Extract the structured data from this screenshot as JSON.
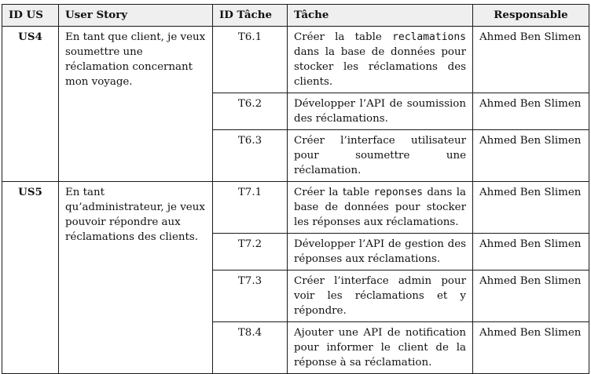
{
  "headers": {
    "id_us": "ID US",
    "user_story": "User Story",
    "id_tache": "ID Tâche",
    "tache": "Tâche",
    "responsable": "Responsable"
  },
  "stories": [
    {
      "id": "US4",
      "story": "En tant que client, je veux soumettre une réclamation concernant mon voyage.",
      "tasks": [
        {
          "id": "T6.1",
          "text_before": "Créer la table ",
          "code": "reclamations",
          "text_after": " dans la base de données pour stocker les réclamations des clients.",
          "responsable": "Ahmed Ben Slimen"
        },
        {
          "id": "T6.2",
          "text_before": "Développer l’API de soumission des réclamations.",
          "code": "",
          "text_after": "",
          "responsable": "Ahmed Ben Slimen"
        },
        {
          "id": "T6.3",
          "text_before": "Créer l’interface utilisateur pour soumettre une réclamation.",
          "code": "",
          "text_after": "",
          "responsable": "Ahmed Ben Slimen"
        }
      ]
    },
    {
      "id": "US5",
      "story": "En tant qu’administrateur, je veux pouvoir répondre aux réclamations des clients.",
      "tasks": [
        {
          "id": "T7.1",
          "text_before": "Créer la table ",
          "code": "reponses",
          "text_after": " dans la base de données pour stocker les réponses aux réclamations.",
          "responsable": "Ahmed Ben Slimen"
        },
        {
          "id": "T7.2",
          "text_before": "Développer l’API de gestion des réponses aux réclamations.",
          "code": "",
          "text_after": "",
          "responsable": "Ahmed Ben Slimen"
        },
        {
          "id": "T7.3",
          "text_before": "Créer l’interface admin pour voir les réclamations et y répondre.",
          "code": "",
          "text_after": "",
          "responsable": "Ahmed Ben Slimen"
        },
        {
          "id": "T8.4",
          "text_before": "Ajouter une API de notification pour informer le client de la réponse à sa réclamation.",
          "code": "",
          "text_after": "",
          "responsable": "Ahmed Ben Slimen"
        }
      ]
    }
  ]
}
